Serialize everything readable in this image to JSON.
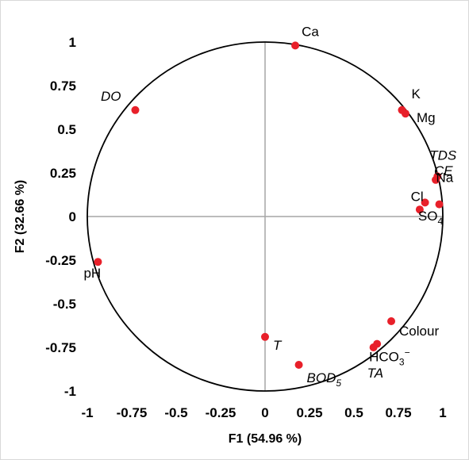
{
  "chart_data": {
    "type": "scatter",
    "xlabel": "F1 (54.96 %)",
    "ylabel": "F2 (32.66 %)",
    "xlim": [
      -1,
      1
    ],
    "ylim": [
      -1,
      1
    ],
    "x_ticks": [
      "-1",
      "-0.75",
      "-0.5",
      "-0.25",
      "0",
      "0.25",
      "0.5",
      "0.75",
      "1"
    ],
    "y_ticks": [
      "1",
      "0.75",
      "0.5",
      "0.25",
      "0",
      "-0.25",
      "-0.5",
      "-0.75",
      "-1"
    ],
    "unit_circle": true,
    "marker_color": "#e8202a",
    "points": [
      {
        "label": "Ca",
        "x": 0.17,
        "y": 0.98,
        "italic": false
      },
      {
        "label": "DO",
        "x": -0.73,
        "y": 0.61,
        "italic": true
      },
      {
        "label": "K",
        "x": 0.77,
        "y": 0.61,
        "italic": false
      },
      {
        "label": "Mg",
        "x": 0.79,
        "y": 0.59,
        "italic": false
      },
      {
        "label": "TDS",
        "x": 0.97,
        "y": 0.23,
        "italic": true
      },
      {
        "label": "CE",
        "x": 0.96,
        "y": 0.21,
        "italic": true
      },
      {
        "label": "Cl",
        "x": 0.9,
        "y": 0.08,
        "italic": false
      },
      {
        "label": "Na",
        "x": 0.98,
        "y": 0.07,
        "italic": false
      },
      {
        "label": "SO",
        "sub": "4",
        "x": 0.87,
        "y": 0.04,
        "italic": false
      },
      {
        "label": "pH",
        "x": -0.94,
        "y": -0.26,
        "italic": false
      },
      {
        "label": "Colour",
        "x": 0.71,
        "y": -0.6,
        "italic": false
      },
      {
        "label": "T",
        "x": 0.0,
        "y": -0.69,
        "italic": true
      },
      {
        "label": "HCO",
        "sub": "3",
        "sup": "−",
        "x": 0.63,
        "y": -0.73,
        "italic": false
      },
      {
        "label": "TA",
        "x": 0.61,
        "y": -0.75,
        "italic": true
      },
      {
        "label": "BOD",
        "sub": "5",
        "x": 0.19,
        "y": -0.85,
        "italic": true
      }
    ]
  }
}
